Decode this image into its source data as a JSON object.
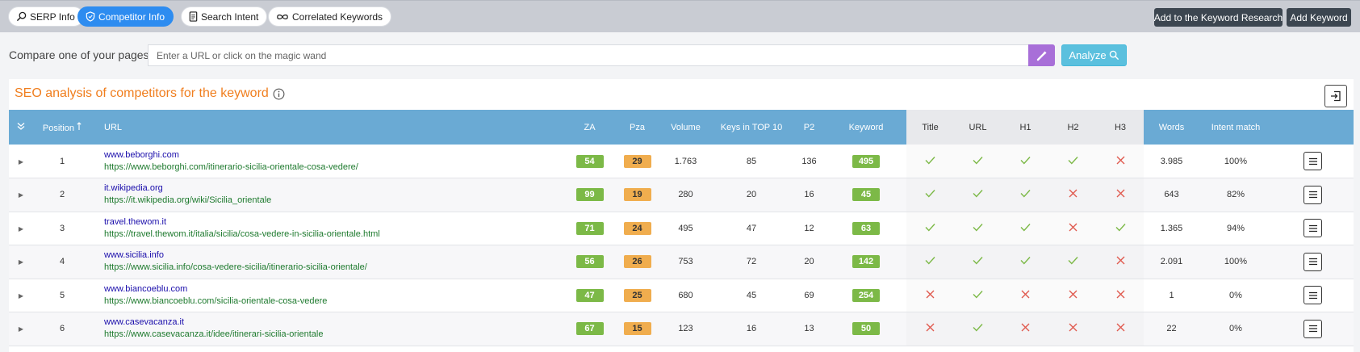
{
  "tabs": [
    {
      "label": "SERP Info",
      "icon": "search-icon",
      "active": false
    },
    {
      "label": "Competitor Info",
      "icon": "shield-icon",
      "active": true
    },
    {
      "label": "Search Intent",
      "icon": "document-icon",
      "active": false
    },
    {
      "label": "Correlated Keywords",
      "icon": "infinity-icon",
      "active": false
    }
  ],
  "actions": {
    "add_research": "Add to the Keyword Research",
    "add_keyword": "Add Keyword"
  },
  "compare": {
    "label": "Compare one of your pages",
    "placeholder": "Enter a URL or click on the magic wand",
    "value": "",
    "analyze_label": "Analyze"
  },
  "panel": {
    "title": "SEO analysis of competitors for the keyword"
  },
  "columns": {
    "position": "Position",
    "url": "URL",
    "za": "ZA",
    "pza": "Pza",
    "volume": "Volume",
    "keys_top10": "Keys in TOP 10",
    "p2": "P2",
    "keyword": "Keyword",
    "title": "Title",
    "url_match": "URL",
    "h1": "H1",
    "h2": "H2",
    "h3": "H3",
    "words": "Words",
    "intent": "Intent match"
  },
  "colors": {
    "accent_blue": "#2d8cf0",
    "header_blue": "#6aaad4",
    "title_orange": "#f07e1e",
    "badge_green": "#7cb947",
    "badge_orange": "#f0ad4e",
    "check_green": "#7cb947",
    "cross_red": "#e05a4f"
  },
  "rows": [
    {
      "position": "1",
      "domain": "www.beborghi.com",
      "url": "https://www.beborghi.com/itinerario-sicilia-orientale-cosa-vedere/",
      "za": "54",
      "pza": "29",
      "volume": "1.763",
      "keys_top10": "85",
      "p2": "136",
      "keyword": "495",
      "title": true,
      "url_match": true,
      "h1": true,
      "h2": true,
      "h3": false,
      "words": "3.985",
      "intent": "100%"
    },
    {
      "position": "2",
      "domain": "it.wikipedia.org",
      "url": "https://it.wikipedia.org/wiki/Sicilia_orientale",
      "za": "99",
      "pza": "19",
      "volume": "280",
      "keys_top10": "20",
      "p2": "16",
      "keyword": "45",
      "title": true,
      "url_match": true,
      "h1": true,
      "h2": false,
      "h3": false,
      "words": "643",
      "intent": "82%"
    },
    {
      "position": "3",
      "domain": "travel.thewom.it",
      "url": "https://travel.thewom.it/italia/sicilia/cosa-vedere-in-sicilia-orientale.html",
      "za": "71",
      "pza": "24",
      "volume": "495",
      "keys_top10": "47",
      "p2": "12",
      "keyword": "63",
      "title": true,
      "url_match": true,
      "h1": true,
      "h2": false,
      "h3": true,
      "words": "1.365",
      "intent": "94%"
    },
    {
      "position": "4",
      "domain": "www.sicilia.info",
      "url": "https://www.sicilia.info/cosa-vedere-sicilia/itinerario-sicilia-orientale/",
      "za": "56",
      "pza": "26",
      "volume": "753",
      "keys_top10": "72",
      "p2": "20",
      "keyword": "142",
      "title": true,
      "url_match": true,
      "h1": true,
      "h2": true,
      "h3": false,
      "words": "2.091",
      "intent": "100%"
    },
    {
      "position": "5",
      "domain": "www.biancoeblu.com",
      "url": "https://www.biancoeblu.com/sicilia-orientale-cosa-vedere",
      "za": "47",
      "pza": "25",
      "volume": "680",
      "keys_top10": "45",
      "p2": "69",
      "keyword": "254",
      "title": false,
      "url_match": true,
      "h1": false,
      "h2": false,
      "h3": false,
      "words": "1",
      "intent": "0%"
    },
    {
      "position": "6",
      "domain": "www.casevacanza.it",
      "url": "https://www.casevacanza.it/idee/itinerari-sicilia-orientale",
      "za": "67",
      "pza": "15",
      "volume": "123",
      "keys_top10": "16",
      "p2": "13",
      "keyword": "50",
      "title": false,
      "url_match": true,
      "h1": false,
      "h2": false,
      "h3": false,
      "words": "22",
      "intent": "0%"
    }
  ]
}
